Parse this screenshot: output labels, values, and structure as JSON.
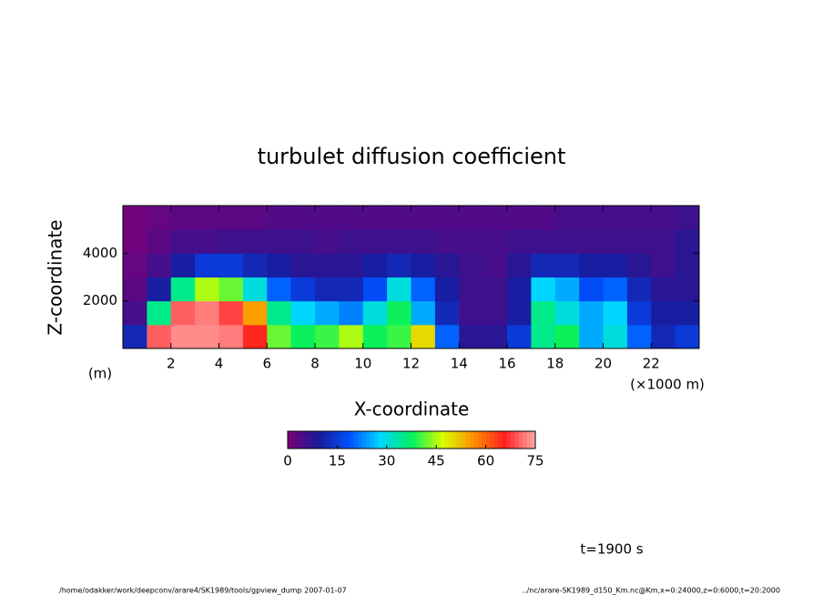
{
  "chart_data": {
    "type": "heatmap",
    "title": "turbulet diffusion coefficient",
    "x_label": "X-coordinate",
    "y_label": "Z-coordinate",
    "y_unit": "(m)",
    "x_unit": "(×1000 m)",
    "xlim": [
      0,
      24000
    ],
    "xticks": [
      {
        "value": 2000,
        "label": "2"
      },
      {
        "value": 4000,
        "label": "4"
      },
      {
        "value": 6000,
        "label": "6"
      },
      {
        "value": 8000,
        "label": "8"
      },
      {
        "value": 10000,
        "label": "10"
      },
      {
        "value": 12000,
        "label": "12"
      },
      {
        "value": 14000,
        "label": "14"
      },
      {
        "value": 16000,
        "label": "16"
      },
      {
        "value": 18000,
        "label": "18"
      },
      {
        "value": 20000,
        "label": "20"
      },
      {
        "value": 22000,
        "label": "22"
      }
    ],
    "ylim": [
      0,
      6000
    ],
    "yticks": [
      2000,
      4000
    ],
    "x": [
      500,
      1500,
      2500,
      3500,
      4500,
      5500,
      6500,
      7500,
      8500,
      9500,
      10500,
      11500,
      12500,
      13500,
      14500,
      15500,
      16500,
      17500,
      18500,
      19500,
      20500,
      21500,
      22500,
      23500
    ],
    "z": [
      500,
      1500,
      2500,
      3500,
      4500,
      5500
    ],
    "values": [
      [
        12,
        70,
        73,
        73,
        72,
        65,
        42,
        38,
        40,
        45,
        38,
        40,
        50,
        20,
        8,
        8,
        15,
        35,
        38,
        25,
        30,
        20,
        12,
        15
      ],
      [
        5,
        35,
        70,
        72,
        68,
        55,
        35,
        28,
        25,
        22,
        30,
        38,
        25,
        12,
        6,
        6,
        10,
        35,
        30,
        25,
        28,
        15,
        10,
        10
      ],
      [
        3,
        10,
        35,
        45,
        42,
        30,
        20,
        15,
        12,
        12,
        18,
        30,
        20,
        10,
        6,
        6,
        10,
        28,
        25,
        18,
        20,
        12,
        8,
        8
      ],
      [
        2,
        5,
        10,
        15,
        15,
        12,
        10,
        8,
        8,
        8,
        10,
        12,
        10,
        8,
        6,
        5,
        8,
        12,
        12,
        10,
        10,
        8,
        6,
        8
      ],
      [
        1,
        3,
        5,
        5,
        6,
        6,
        6,
        6,
        5,
        6,
        6,
        6,
        6,
        5,
        5,
        5,
        6,
        6,
        6,
        6,
        6,
        6,
        6,
        8
      ],
      [
        1,
        2,
        3,
        3,
        3,
        3,
        4,
        4,
        4,
        4,
        4,
        4,
        4,
        4,
        4,
        4,
        4,
        4,
        5,
        5,
        5,
        5,
        5,
        6
      ]
    ],
    "clim": [
      0,
      75
    ],
    "colorbar_ticks": [
      0,
      15,
      30,
      45,
      60,
      75
    ],
    "colormap": [
      "#7a007a",
      "#1a1a9a",
      "#0050ff",
      "#00d8ff",
      "#00f060",
      "#d8ff00",
      "#ff9000",
      "#ff2020",
      "#ffa8a8"
    ],
    "annotation": "t=1900 s",
    "footer_left": "/home/odakker/work/deepconv/arare4/SK1989/tools/gpview_dump  2007-01-07",
    "footer_right": "../nc/arare-SK1989_d150_Km.nc@Km,x=0:24000,z=0:6000,t=20:2000"
  }
}
